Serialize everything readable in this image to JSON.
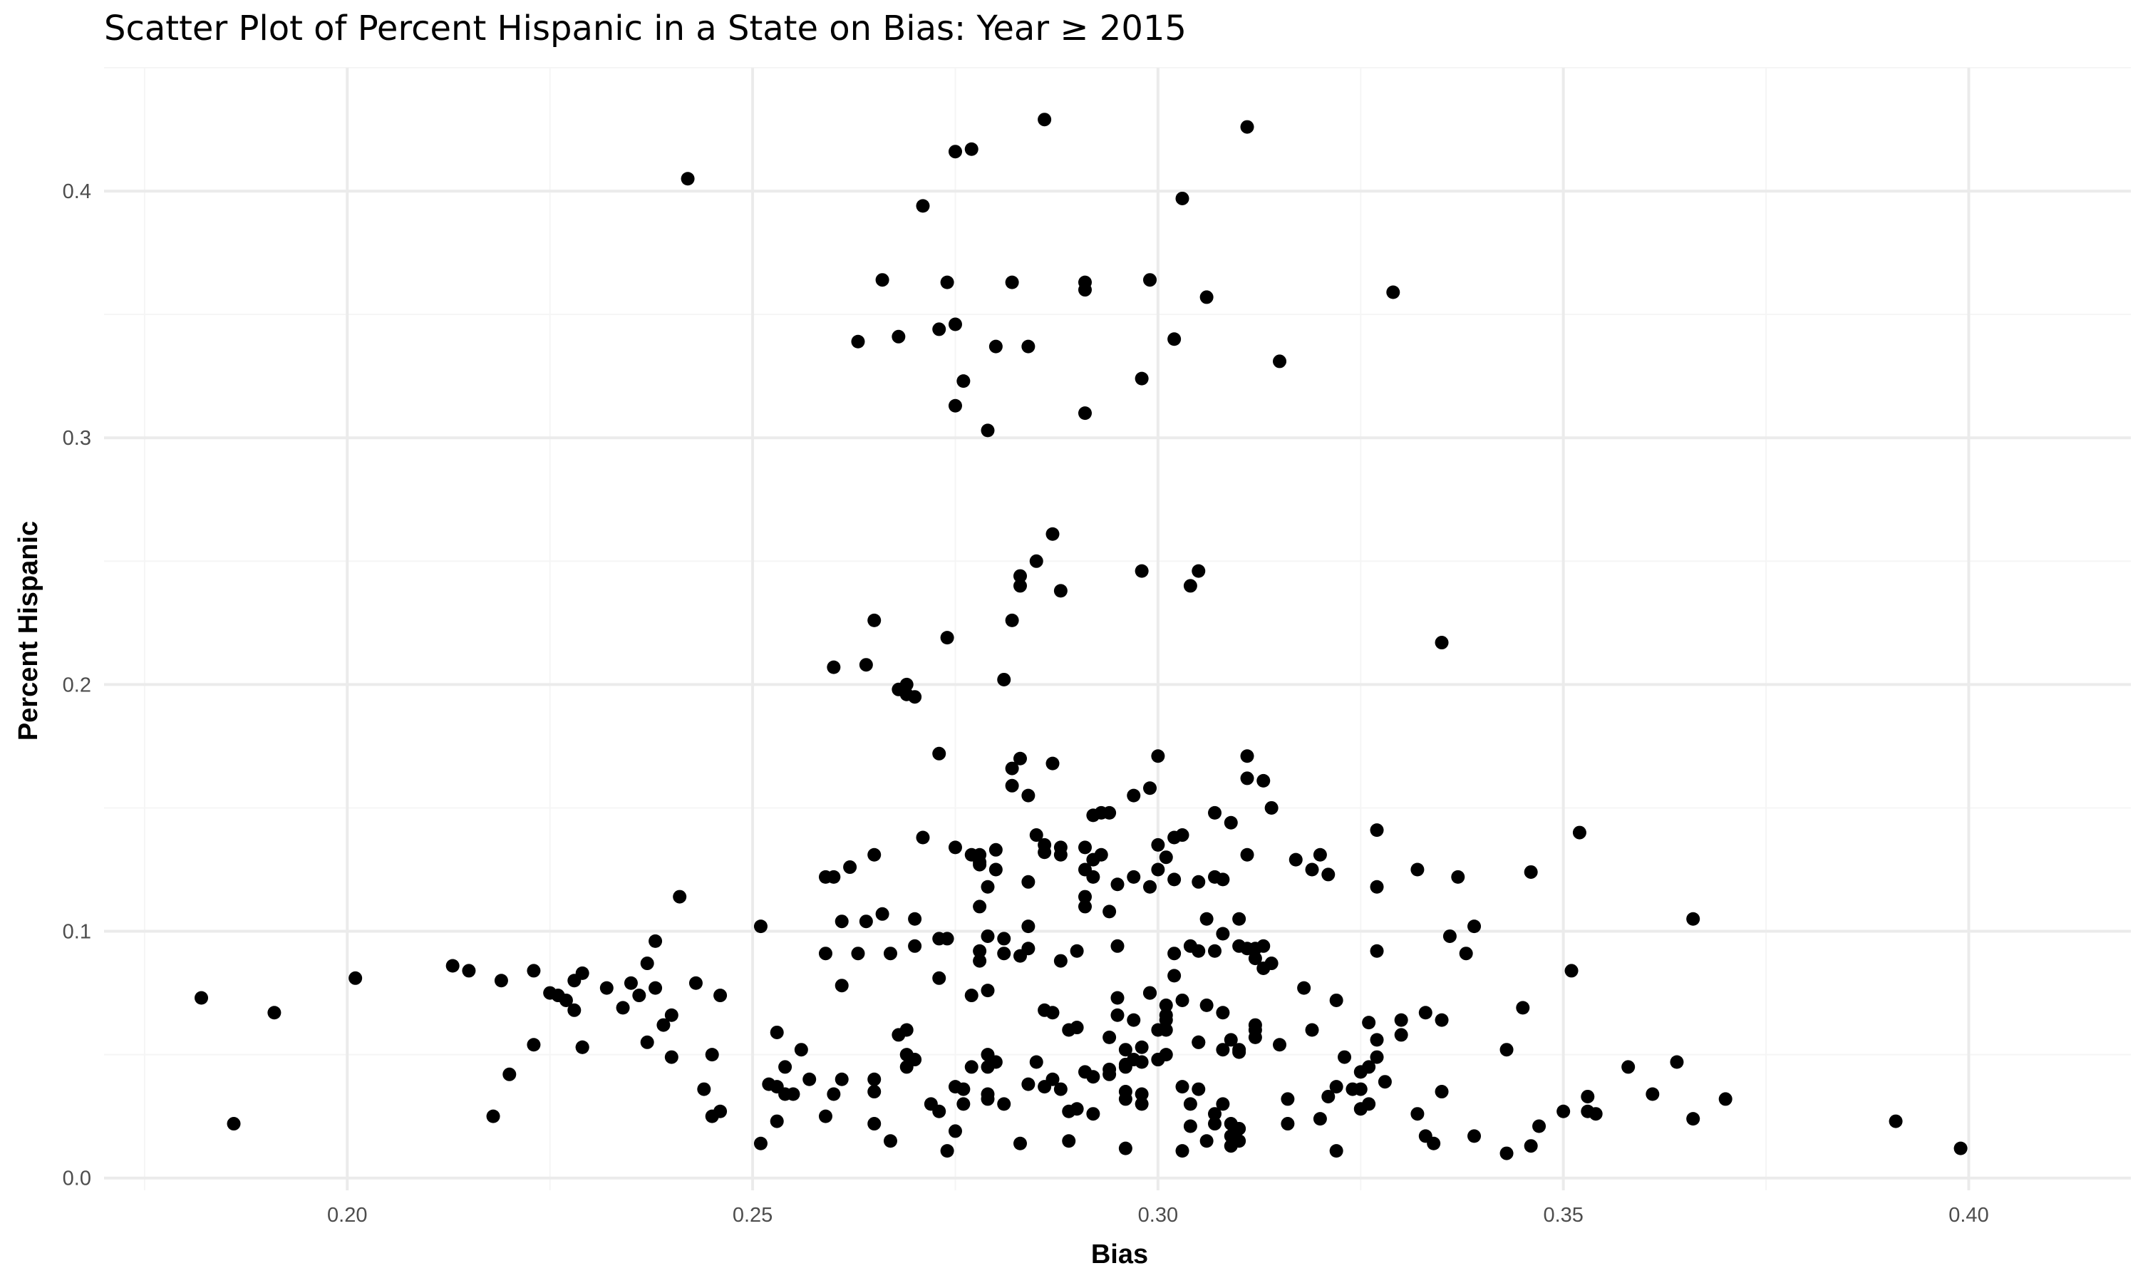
{
  "chart_data": {
    "type": "scatter",
    "title": "Scatter Plot of Percent Hispanic in a State on Bias: Year ≥ 2015",
    "xlabel": "Bias",
    "ylabel": "Percent Hispanic",
    "xlim": [
      0.17,
      0.42
    ],
    "ylim": [
      -0.005,
      0.45
    ],
    "x_ticks": [
      0.2,
      0.25,
      0.3,
      0.35,
      0.4
    ],
    "x_tick_labels": [
      "0.20",
      "0.25",
      "0.30",
      "0.35",
      "0.40"
    ],
    "y_ticks": [
      0.0,
      0.1,
      0.2,
      0.3,
      0.4
    ],
    "y_tick_labels": [
      "0.0",
      "0.1",
      "0.2",
      "0.3",
      "0.4"
    ],
    "grid": true,
    "point_color": "#000000",
    "points": [
      [
        0.182,
        0.073
      ],
      [
        0.186,
        0.022
      ],
      [
        0.191,
        0.067
      ],
      [
        0.201,
        0.081
      ],
      [
        0.213,
        0.086
      ],
      [
        0.215,
        0.084
      ],
      [
        0.218,
        0.025
      ],
      [
        0.219,
        0.08
      ],
      [
        0.22,
        0.042
      ],
      [
        0.223,
        0.054
      ],
      [
        0.223,
        0.084
      ],
      [
        0.225,
        0.075
      ],
      [
        0.226,
        0.074
      ],
      [
        0.227,
        0.072
      ],
      [
        0.228,
        0.08
      ],
      [
        0.228,
        0.068
      ],
      [
        0.229,
        0.083
      ],
      [
        0.229,
        0.053
      ],
      [
        0.229,
        0.053
      ],
      [
        0.232,
        0.077
      ],
      [
        0.234,
        0.069
      ],
      [
        0.235,
        0.079
      ],
      [
        0.236,
        0.074
      ],
      [
        0.237,
        0.087
      ],
      [
        0.237,
        0.055
      ],
      [
        0.238,
        0.096
      ],
      [
        0.238,
        0.077
      ],
      [
        0.239,
        0.062
      ],
      [
        0.24,
        0.066
      ],
      [
        0.24,
        0.049
      ],
      [
        0.241,
        0.114
      ],
      [
        0.242,
        0.405
      ],
      [
        0.243,
        0.079
      ],
      [
        0.244,
        0.036
      ],
      [
        0.245,
        0.025
      ],
      [
        0.245,
        0.05
      ],
      [
        0.246,
        0.027
      ],
      [
        0.246,
        0.074
      ],
      [
        0.251,
        0.102
      ],
      [
        0.251,
        0.014
      ],
      [
        0.252,
        0.038
      ],
      [
        0.253,
        0.037
      ],
      [
        0.253,
        0.023
      ],
      [
        0.253,
        0.059
      ],
      [
        0.254,
        0.045
      ],
      [
        0.254,
        0.034
      ],
      [
        0.255,
        0.034
      ],
      [
        0.256,
        0.052
      ],
      [
        0.257,
        0.04
      ],
      [
        0.259,
        0.025
      ],
      [
        0.259,
        0.091
      ],
      [
        0.259,
        0.122
      ],
      [
        0.26,
        0.122
      ],
      [
        0.26,
        0.207
      ],
      [
        0.26,
        0.034
      ],
      [
        0.261,
        0.104
      ],
      [
        0.261,
        0.078
      ],
      [
        0.261,
        0.04
      ],
      [
        0.262,
        0.126
      ],
      [
        0.263,
        0.339
      ],
      [
        0.263,
        0.091
      ],
      [
        0.264,
        0.104
      ],
      [
        0.264,
        0.208
      ],
      [
        0.265,
        0.226
      ],
      [
        0.265,
        0.131
      ],
      [
        0.265,
        0.04
      ],
      [
        0.265,
        0.035
      ],
      [
        0.265,
        0.022
      ],
      [
        0.266,
        0.107
      ],
      [
        0.266,
        0.364
      ],
      [
        0.267,
        0.091
      ],
      [
        0.267,
        0.015
      ],
      [
        0.268,
        0.341
      ],
      [
        0.268,
        0.058
      ],
      [
        0.268,
        0.198
      ],
      [
        0.269,
        0.05
      ],
      [
        0.269,
        0.045
      ],
      [
        0.269,
        0.06
      ],
      [
        0.269,
        0.2
      ],
      [
        0.269,
        0.196
      ],
      [
        0.27,
        0.195
      ],
      [
        0.27,
        0.094
      ],
      [
        0.27,
        0.105
      ],
      [
        0.27,
        0.048
      ],
      [
        0.271,
        0.394
      ],
      [
        0.271,
        0.138
      ],
      [
        0.272,
        0.03
      ],
      [
        0.273,
        0.344
      ],
      [
        0.273,
        0.027
      ],
      [
        0.273,
        0.172
      ],
      [
        0.273,
        0.097
      ],
      [
        0.273,
        0.081
      ],
      [
        0.274,
        0.011
      ],
      [
        0.274,
        0.219
      ],
      [
        0.274,
        0.363
      ],
      [
        0.274,
        0.097
      ],
      [
        0.275,
        0.313
      ],
      [
        0.275,
        0.037
      ],
      [
        0.275,
        0.019
      ],
      [
        0.275,
        0.416
      ],
      [
        0.275,
        0.346
      ],
      [
        0.275,
        0.134
      ],
      [
        0.276,
        0.323
      ],
      [
        0.276,
        0.036
      ],
      [
        0.276,
        0.03
      ],
      [
        0.277,
        0.045
      ],
      [
        0.277,
        0.417
      ],
      [
        0.277,
        0.131
      ],
      [
        0.277,
        0.074
      ],
      [
        0.278,
        0.088
      ],
      [
        0.278,
        0.092
      ],
      [
        0.278,
        0.128
      ],
      [
        0.278,
        0.131
      ],
      [
        0.278,
        0.127
      ],
      [
        0.278,
        0.11
      ],
      [
        0.279,
        0.098
      ],
      [
        0.279,
        0.076
      ],
      [
        0.279,
        0.034
      ],
      [
        0.279,
        0.032
      ],
      [
        0.279,
        0.05
      ],
      [
        0.279,
        0.045
      ],
      [
        0.279,
        0.303
      ],
      [
        0.279,
        0.118
      ],
      [
        0.28,
        0.337
      ],
      [
        0.28,
        0.133
      ],
      [
        0.28,
        0.125
      ],
      [
        0.28,
        0.047
      ],
      [
        0.281,
        0.091
      ],
      [
        0.281,
        0.03
      ],
      [
        0.281,
        0.202
      ],
      [
        0.281,
        0.097
      ],
      [
        0.282,
        0.166
      ],
      [
        0.282,
        0.159
      ],
      [
        0.282,
        0.226
      ],
      [
        0.282,
        0.363
      ],
      [
        0.283,
        0.17
      ],
      [
        0.283,
        0.24
      ],
      [
        0.283,
        0.244
      ],
      [
        0.283,
        0.09
      ],
      [
        0.283,
        0.014
      ],
      [
        0.284,
        0.337
      ],
      [
        0.284,
        0.038
      ],
      [
        0.284,
        0.093
      ],
      [
        0.284,
        0.102
      ],
      [
        0.284,
        0.12
      ],
      [
        0.284,
        0.155
      ],
      [
        0.285,
        0.25
      ],
      [
        0.285,
        0.139
      ],
      [
        0.285,
        0.047
      ],
      [
        0.286,
        0.132
      ],
      [
        0.286,
        0.135
      ],
      [
        0.286,
        0.429
      ],
      [
        0.286,
        0.068
      ],
      [
        0.286,
        0.037
      ],
      [
        0.287,
        0.168
      ],
      [
        0.287,
        0.261
      ],
      [
        0.287,
        0.04
      ],
      [
        0.287,
        0.067
      ],
      [
        0.288,
        0.238
      ],
      [
        0.288,
        0.134
      ],
      [
        0.288,
        0.088
      ],
      [
        0.288,
        0.131
      ],
      [
        0.288,
        0.036
      ],
      [
        0.289,
        0.06
      ],
      [
        0.289,
        0.027
      ],
      [
        0.289,
        0.015
      ],
      [
        0.29,
        0.061
      ],
      [
        0.29,
        0.028
      ],
      [
        0.29,
        0.092
      ],
      [
        0.291,
        0.36
      ],
      [
        0.291,
        0.363
      ],
      [
        0.291,
        0.134
      ],
      [
        0.291,
        0.31
      ],
      [
        0.291,
        0.114
      ],
      [
        0.291,
        0.11
      ],
      [
        0.291,
        0.043
      ],
      [
        0.291,
        0.125
      ],
      [
        0.292,
        0.041
      ],
      [
        0.292,
        0.026
      ],
      [
        0.292,
        0.147
      ],
      [
        0.292,
        0.122
      ],
      [
        0.292,
        0.129
      ],
      [
        0.293,
        0.131
      ],
      [
        0.293,
        0.148
      ],
      [
        0.294,
        0.148
      ],
      [
        0.294,
        0.108
      ],
      [
        0.294,
        0.057
      ],
      [
        0.294,
        0.042
      ],
      [
        0.294,
        0.044
      ],
      [
        0.295,
        0.094
      ],
      [
        0.295,
        0.119
      ],
      [
        0.295,
        0.073
      ],
      [
        0.295,
        0.066
      ],
      [
        0.296,
        0.012
      ],
      [
        0.296,
        0.035
      ],
      [
        0.296,
        0.046
      ],
      [
        0.296,
        0.045
      ],
      [
        0.296,
        0.032
      ],
      [
        0.296,
        0.052
      ],
      [
        0.297,
        0.122
      ],
      [
        0.297,
        0.064
      ],
      [
        0.297,
        0.155
      ],
      [
        0.297,
        0.048
      ],
      [
        0.298,
        0.246
      ],
      [
        0.298,
        0.034
      ],
      [
        0.298,
        0.047
      ],
      [
        0.298,
        0.03
      ],
      [
        0.298,
        0.324
      ],
      [
        0.298,
        0.053
      ],
      [
        0.299,
        0.158
      ],
      [
        0.299,
        0.118
      ],
      [
        0.299,
        0.364
      ],
      [
        0.299,
        0.075
      ],
      [
        0.299,
        0.075
      ],
      [
        0.3,
        0.135
      ],
      [
        0.3,
        0.125
      ],
      [
        0.3,
        0.06
      ],
      [
        0.3,
        0.048
      ],
      [
        0.3,
        0.048
      ],
      [
        0.3,
        0.171
      ],
      [
        0.301,
        0.13
      ],
      [
        0.301,
        0.064
      ],
      [
        0.301,
        0.05
      ],
      [
        0.301,
        0.06
      ],
      [
        0.301,
        0.066
      ],
      [
        0.301,
        0.07
      ],
      [
        0.302,
        0.138
      ],
      [
        0.302,
        0.121
      ],
      [
        0.302,
        0.091
      ],
      [
        0.302,
        0.082
      ],
      [
        0.302,
        0.34
      ],
      [
        0.303,
        0.037
      ],
      [
        0.303,
        0.397
      ],
      [
        0.303,
        0.139
      ],
      [
        0.303,
        0.072
      ],
      [
        0.303,
        0.011
      ],
      [
        0.304,
        0.03
      ],
      [
        0.304,
        0.021
      ],
      [
        0.304,
        0.094
      ],
      [
        0.304,
        0.24
      ],
      [
        0.305,
        0.246
      ],
      [
        0.305,
        0.12
      ],
      [
        0.305,
        0.092
      ],
      [
        0.305,
        0.055
      ],
      [
        0.305,
        0.055
      ],
      [
        0.305,
        0.036
      ],
      [
        0.306,
        0.357
      ],
      [
        0.306,
        0.105
      ],
      [
        0.306,
        0.015
      ],
      [
        0.306,
        0.07
      ],
      [
        0.307,
        0.026
      ],
      [
        0.307,
        0.022
      ],
      [
        0.307,
        0.092
      ],
      [
        0.307,
        0.148
      ],
      [
        0.307,
        0.122
      ],
      [
        0.308,
        0.099
      ],
      [
        0.308,
        0.067
      ],
      [
        0.308,
        0.03
      ],
      [
        0.308,
        0.121
      ],
      [
        0.308,
        0.052
      ],
      [
        0.309,
        0.144
      ],
      [
        0.309,
        0.056
      ],
      [
        0.309,
        0.013
      ],
      [
        0.309,
        0.017
      ],
      [
        0.309,
        0.022
      ],
      [
        0.31,
        0.094
      ],
      [
        0.31,
        0.105
      ],
      [
        0.31,
        0.052
      ],
      [
        0.31,
        0.051
      ],
      [
        0.31,
        0.015
      ],
      [
        0.31,
        0.02
      ],
      [
        0.311,
        0.093
      ],
      [
        0.311,
        0.131
      ],
      [
        0.311,
        0.171
      ],
      [
        0.311,
        0.162
      ],
      [
        0.311,
        0.426
      ],
      [
        0.312,
        0.093
      ],
      [
        0.312,
        0.089
      ],
      [
        0.312,
        0.062
      ],
      [
        0.312,
        0.06
      ],
      [
        0.312,
        0.057
      ],
      [
        0.313,
        0.085
      ],
      [
        0.313,
        0.094
      ],
      [
        0.313,
        0.161
      ],
      [
        0.314,
        0.087
      ],
      [
        0.314,
        0.15
      ],
      [
        0.315,
        0.331
      ],
      [
        0.315,
        0.054
      ],
      [
        0.316,
        0.032
      ],
      [
        0.316,
        0.022
      ],
      [
        0.317,
        0.129
      ],
      [
        0.318,
        0.077
      ],
      [
        0.319,
        0.125
      ],
      [
        0.319,
        0.06
      ],
      [
        0.32,
        0.131
      ],
      [
        0.32,
        0.024
      ],
      [
        0.321,
        0.123
      ],
      [
        0.321,
        0.033
      ],
      [
        0.322,
        0.072
      ],
      [
        0.322,
        0.011
      ],
      [
        0.322,
        0.037
      ],
      [
        0.323,
        0.049
      ],
      [
        0.324,
        0.036
      ],
      [
        0.325,
        0.028
      ],
      [
        0.325,
        0.043
      ],
      [
        0.325,
        0.036
      ],
      [
        0.326,
        0.063
      ],
      [
        0.326,
        0.03
      ],
      [
        0.326,
        0.045
      ],
      [
        0.327,
        0.056
      ],
      [
        0.327,
        0.118
      ],
      [
        0.327,
        0.141
      ],
      [
        0.327,
        0.092
      ],
      [
        0.327,
        0.049
      ],
      [
        0.328,
        0.039
      ],
      [
        0.329,
        0.359
      ],
      [
        0.33,
        0.058
      ],
      [
        0.33,
        0.064
      ],
      [
        0.332,
        0.125
      ],
      [
        0.332,
        0.026
      ],
      [
        0.333,
        0.067
      ],
      [
        0.333,
        0.017
      ],
      [
        0.334,
        0.014
      ],
      [
        0.335,
        0.035
      ],
      [
        0.335,
        0.217
      ],
      [
        0.335,
        0.064
      ],
      [
        0.336,
        0.098
      ],
      [
        0.337,
        0.122
      ],
      [
        0.338,
        0.091
      ],
      [
        0.339,
        0.102
      ],
      [
        0.339,
        0.017
      ],
      [
        0.343,
        0.052
      ],
      [
        0.343,
        0.01
      ],
      [
        0.345,
        0.069
      ],
      [
        0.346,
        0.124
      ],
      [
        0.346,
        0.013
      ],
      [
        0.347,
        0.021
      ],
      [
        0.35,
        0.027
      ],
      [
        0.351,
        0.084
      ],
      [
        0.352,
        0.14
      ],
      [
        0.353,
        0.033
      ],
      [
        0.353,
        0.027
      ],
      [
        0.354,
        0.026
      ],
      [
        0.358,
        0.045
      ],
      [
        0.361,
        0.034
      ],
      [
        0.364,
        0.047
      ],
      [
        0.366,
        0.105
      ],
      [
        0.366,
        0.024
      ],
      [
        0.37,
        0.032
      ],
      [
        0.391,
        0.023
      ],
      [
        0.399,
        0.012
      ]
    ]
  }
}
